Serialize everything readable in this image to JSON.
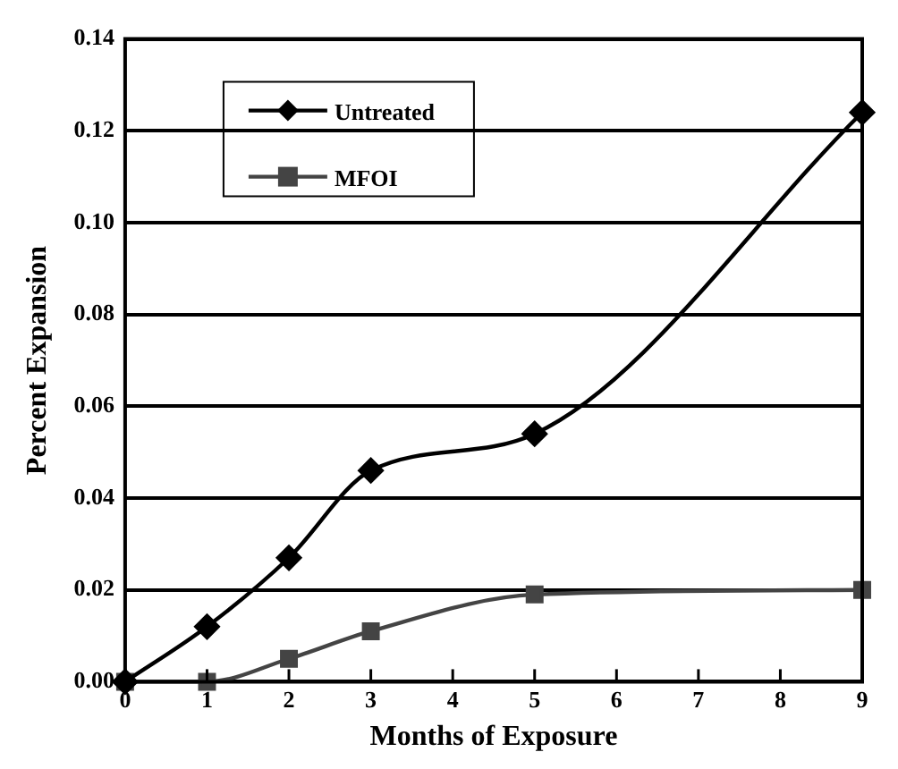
{
  "chart_data": {
    "type": "line",
    "xlabel": "Months of Exposure",
    "ylabel": "Percent Expansion",
    "xlim": [
      0,
      9
    ],
    "xticks": [
      0,
      1,
      2,
      3,
      4,
      5,
      6,
      7,
      8,
      9
    ],
    "ylim": [
      0,
      0.14
    ],
    "yticks": [
      {
        "value": 0,
        "label": "0.00"
      },
      {
        "value": 0.02,
        "label": "0.02"
      },
      {
        "value": 0.04,
        "label": "0.04"
      },
      {
        "value": 0.06,
        "label": "0.06"
      },
      {
        "value": 0.08,
        "label": "0.08"
      },
      {
        "value": 0.1,
        "label": "0.10"
      },
      {
        "value": 0.12,
        "label": "0.12"
      },
      {
        "value": 0.14,
        "label": "0.14"
      }
    ],
    "grid": "y",
    "legend": "top left",
    "series": [
      {
        "name": "Untreated",
        "color": "#000000",
        "marker": "diamond",
        "x": [
          0,
          1,
          2,
          3,
          5,
          9
        ],
        "values": [
          0,
          0.012,
          0.027,
          0.046,
          0.054,
          0.124
        ]
      },
      {
        "name": "MFOI",
        "color": "#444444",
        "marker": "square",
        "x": [
          0,
          1,
          2,
          3,
          5,
          9
        ],
        "values": [
          0,
          0,
          0.005,
          0.011,
          0.019,
          0.02
        ]
      }
    ]
  }
}
